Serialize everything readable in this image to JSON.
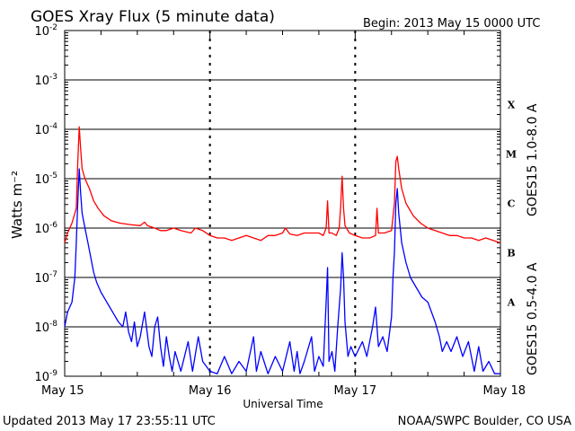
{
  "title": "GOES Xray Flux (5 minute data)",
  "begin_label": "Begin:  2013 May 15 0000 UTC",
  "footer_left": "Updated 2013 May 17 23:55:11 UTC",
  "footer_right": "NOAA/SWPC Boulder, CO USA",
  "chart_data": {
    "type": "line",
    "title": "GOES Xray Flux (5 minute data)",
    "xlabel": "Universal Time",
    "ylabel": "Watts m⁻²",
    "x_unit": "days since 2013 May 15 0000 UTC",
    "xlim": [
      0,
      3
    ],
    "x_ticks": [
      {
        "value": 0,
        "label": "May 15"
      },
      {
        "value": 1,
        "label": "May 16"
      },
      {
        "value": 2,
        "label": "May 17"
      },
      {
        "value": 3,
        "label": "May 18"
      }
    ],
    "y_scale": "log",
    "ylim": [
      1e-09,
      0.01
    ],
    "y_ticks": [
      {
        "exp": -9,
        "label": "10",
        "sup": "-9"
      },
      {
        "exp": -8,
        "label": "10",
        "sup": "-8"
      },
      {
        "exp": -7,
        "label": "10",
        "sup": "-7"
      },
      {
        "exp": -6,
        "label": "10",
        "sup": "-6"
      },
      {
        "exp": -5,
        "label": "10",
        "sup": "-5"
      },
      {
        "exp": -4,
        "label": "10",
        "sup": "-4"
      },
      {
        "exp": -3,
        "label": "10",
        "sup": "-3"
      },
      {
        "exp": -2,
        "label": "10",
        "sup": "-2"
      }
    ],
    "flare_classes": [
      {
        "label": "A",
        "exp": -7.5
      },
      {
        "label": "B",
        "exp": -6.5
      },
      {
        "label": "C",
        "exp": -5.5
      },
      {
        "label": "M",
        "exp": -4.5
      },
      {
        "label": "X",
        "exp": -3.5
      }
    ],
    "grid": true,
    "series": [
      {
        "name": "GOES15 1.0-8.0 A",
        "color": "#ff0000",
        "points": [
          [
            0.0,
            -6.3
          ],
          [
            0.02,
            -6.1
          ],
          [
            0.05,
            -5.9
          ],
          [
            0.08,
            -5.6
          ],
          [
            0.09,
            -4.7
          ],
          [
            0.1,
            -3.95
          ],
          [
            0.11,
            -4.4
          ],
          [
            0.12,
            -4.8
          ],
          [
            0.14,
            -5.0
          ],
          [
            0.17,
            -5.2
          ],
          [
            0.2,
            -5.45
          ],
          [
            0.23,
            -5.6
          ],
          [
            0.27,
            -5.75
          ],
          [
            0.32,
            -5.85
          ],
          [
            0.38,
            -5.9
          ],
          [
            0.45,
            -5.93
          ],
          [
            0.52,
            -5.95
          ],
          [
            0.55,
            -5.88
          ],
          [
            0.57,
            -5.95
          ],
          [
            0.62,
            -6.0
          ],
          [
            0.66,
            -6.05
          ],
          [
            0.7,
            -6.05
          ],
          [
            0.75,
            -6.0
          ],
          [
            0.8,
            -6.05
          ],
          [
            0.87,
            -6.1
          ],
          [
            0.9,
            -6.0
          ],
          [
            0.95,
            -6.05
          ],
          [
            1.0,
            -6.15
          ],
          [
            1.05,
            -6.2
          ],
          [
            1.1,
            -6.2
          ],
          [
            1.15,
            -6.25
          ],
          [
            1.2,
            -6.2
          ],
          [
            1.25,
            -6.15
          ],
          [
            1.3,
            -6.2
          ],
          [
            1.35,
            -6.25
          ],
          [
            1.4,
            -6.15
          ],
          [
            1.45,
            -6.15
          ],
          [
            1.5,
            -6.1
          ],
          [
            1.52,
            -6.0
          ],
          [
            1.55,
            -6.12
          ],
          [
            1.6,
            -6.15
          ],
          [
            1.65,
            -6.1
          ],
          [
            1.7,
            -6.1
          ],
          [
            1.75,
            -6.1
          ],
          [
            1.78,
            -6.15
          ],
          [
            1.8,
            -6.0
          ],
          [
            1.81,
            -5.45
          ],
          [
            1.82,
            -6.1
          ],
          [
            1.84,
            -6.1
          ],
          [
            1.87,
            -6.15
          ],
          [
            1.89,
            -6.0
          ],
          [
            1.9,
            -5.55
          ],
          [
            1.91,
            -4.95
          ],
          [
            1.92,
            -5.6
          ],
          [
            1.93,
            -5.95
          ],
          [
            1.96,
            -6.1
          ],
          [
            2.0,
            -6.15
          ],
          [
            2.05,
            -6.2
          ],
          [
            2.1,
            -6.2
          ],
          [
            2.14,
            -6.15
          ],
          [
            2.15,
            -5.6
          ],
          [
            2.16,
            -6.1
          ],
          [
            2.2,
            -6.1
          ],
          [
            2.25,
            -6.05
          ],
          [
            2.27,
            -5.5
          ],
          [
            2.28,
            -4.65
          ],
          [
            2.29,
            -4.55
          ],
          [
            2.3,
            -4.8
          ],
          [
            2.32,
            -5.2
          ],
          [
            2.35,
            -5.5
          ],
          [
            2.4,
            -5.75
          ],
          [
            2.45,
            -5.9
          ],
          [
            2.5,
            -6.0
          ],
          [
            2.55,
            -6.05
          ],
          [
            2.6,
            -6.1
          ],
          [
            2.65,
            -6.15
          ],
          [
            2.7,
            -6.15
          ],
          [
            2.75,
            -6.2
          ],
          [
            2.8,
            -6.2
          ],
          [
            2.85,
            -6.25
          ],
          [
            2.9,
            -6.2
          ],
          [
            2.95,
            -6.25
          ],
          [
            3.0,
            -6.3
          ]
        ]
      },
      {
        "name": "GOES15 0.5-4.0 A",
        "color": "#0000ff",
        "points": [
          [
            0.0,
            -8.0
          ],
          [
            0.02,
            -7.7
          ],
          [
            0.05,
            -7.5
          ],
          [
            0.07,
            -7.0
          ],
          [
            0.08,
            -6.3
          ],
          [
            0.09,
            -5.5
          ],
          [
            0.1,
            -4.8
          ],
          [
            0.11,
            -5.3
          ],
          [
            0.12,
            -5.7
          ],
          [
            0.14,
            -6.0
          ],
          [
            0.16,
            -6.3
          ],
          [
            0.18,
            -6.6
          ],
          [
            0.2,
            -6.9
          ],
          [
            0.22,
            -7.1
          ],
          [
            0.25,
            -7.3
          ],
          [
            0.28,
            -7.45
          ],
          [
            0.31,
            -7.6
          ],
          [
            0.34,
            -7.75
          ],
          [
            0.37,
            -7.9
          ],
          [
            0.4,
            -8.0
          ],
          [
            0.42,
            -7.7
          ],
          [
            0.44,
            -8.1
          ],
          [
            0.46,
            -8.3
          ],
          [
            0.48,
            -7.9
          ],
          [
            0.5,
            -8.4
          ],
          [
            0.52,
            -8.2
          ],
          [
            0.55,
            -7.7
          ],
          [
            0.58,
            -8.4
          ],
          [
            0.6,
            -8.6
          ],
          [
            0.62,
            -8.0
          ],
          [
            0.64,
            -7.8
          ],
          [
            0.66,
            -8.4
          ],
          [
            0.68,
            -8.8
          ],
          [
            0.7,
            -8.2
          ],
          [
            0.72,
            -8.6
          ],
          [
            0.74,
            -8.9
          ],
          [
            0.76,
            -8.5
          ],
          [
            0.8,
            -8.9
          ],
          [
            0.85,
            -8.3
          ],
          [
            0.88,
            -8.9
          ],
          [
            0.92,
            -8.2
          ],
          [
            0.95,
            -8.7
          ],
          [
            1.0,
            -8.9
          ],
          [
            1.05,
            -8.95
          ],
          [
            1.1,
            -8.6
          ],
          [
            1.15,
            -8.95
          ],
          [
            1.2,
            -8.7
          ],
          [
            1.25,
            -8.9
          ],
          [
            1.3,
            -8.2
          ],
          [
            1.32,
            -8.9
          ],
          [
            1.35,
            -8.5
          ],
          [
            1.4,
            -8.95
          ],
          [
            1.45,
            -8.6
          ],
          [
            1.5,
            -8.9
          ],
          [
            1.55,
            -8.3
          ],
          [
            1.58,
            -8.9
          ],
          [
            1.6,
            -8.5
          ],
          [
            1.62,
            -8.95
          ],
          [
            1.65,
            -8.7
          ],
          [
            1.7,
            -8.2
          ],
          [
            1.72,
            -8.9
          ],
          [
            1.75,
            -8.6
          ],
          [
            1.78,
            -8.8
          ],
          [
            1.8,
            -7.5
          ],
          [
            1.81,
            -6.8
          ],
          [
            1.82,
            -8.7
          ],
          [
            1.84,
            -8.5
          ],
          [
            1.86,
            -8.9
          ],
          [
            1.88,
            -8.0
          ],
          [
            1.9,
            -7.2
          ],
          [
            1.91,
            -6.5
          ],
          [
            1.92,
            -7.0
          ],
          [
            1.93,
            -7.9
          ],
          [
            1.95,
            -8.6
          ],
          [
            1.97,
            -8.4
          ],
          [
            2.0,
            -8.6
          ],
          [
            2.05,
            -8.3
          ],
          [
            2.08,
            -8.6
          ],
          [
            2.12,
            -8.0
          ],
          [
            2.14,
            -7.6
          ],
          [
            2.16,
            -8.4
          ],
          [
            2.19,
            -8.2
          ],
          [
            2.22,
            -8.5
          ],
          [
            2.25,
            -7.8
          ],
          [
            2.26,
            -7.0
          ],
          [
            2.27,
            -6.5
          ],
          [
            2.28,
            -5.5
          ],
          [
            2.29,
            -5.2
          ],
          [
            2.3,
            -5.7
          ],
          [
            2.32,
            -6.3
          ],
          [
            2.35,
            -6.7
          ],
          [
            2.38,
            -7.0
          ],
          [
            2.42,
            -7.2
          ],
          [
            2.46,
            -7.4
          ],
          [
            2.5,
            -7.5
          ],
          [
            2.55,
            -7.9
          ],
          [
            2.58,
            -8.2
          ],
          [
            2.6,
            -8.5
          ],
          [
            2.63,
            -8.3
          ],
          [
            2.66,
            -8.5
          ],
          [
            2.7,
            -8.2
          ],
          [
            2.74,
            -8.6
          ],
          [
            2.78,
            -8.3
          ],
          [
            2.82,
            -8.9
          ],
          [
            2.85,
            -8.4
          ],
          [
            2.88,
            -8.9
          ],
          [
            2.92,
            -8.7
          ],
          [
            2.96,
            -8.95
          ],
          [
            3.0,
            -8.95
          ]
        ]
      }
    ]
  }
}
